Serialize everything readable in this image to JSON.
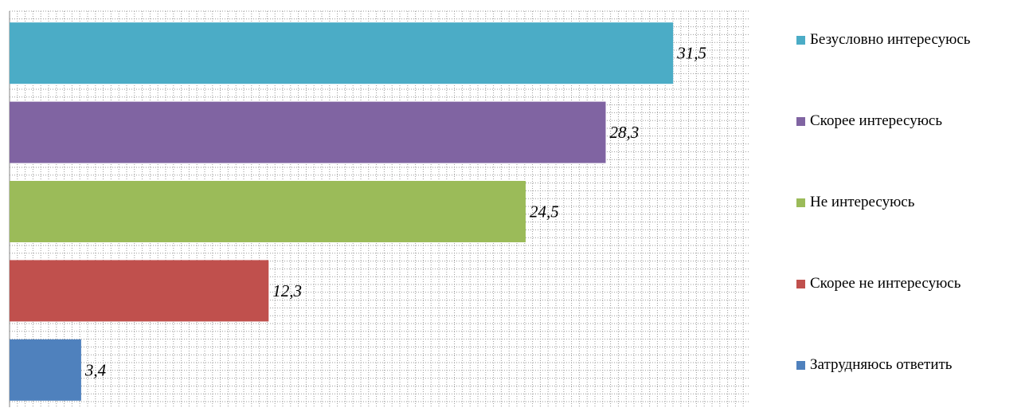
{
  "chart_data": {
    "type": "bar",
    "orientation": "horizontal",
    "categories": [
      "Безусловно интересуюсь",
      "Скорее интересуюсь",
      "Не интересуюсь",
      "Скорее не интересуюсь",
      "Затрудняюсь ответить"
    ],
    "values": [
      31.5,
      28.3,
      24.5,
      12.3,
      3.4
    ],
    "value_labels": [
      "31,5",
      "28,3",
      "24,5",
      "12,3",
      "3,4"
    ],
    "colors": [
      "#4BACC6",
      "#8064A2",
      "#9BBB59",
      "#C0504D",
      "#4F81BD"
    ],
    "title": "",
    "xlabel": "",
    "ylabel": "",
    "xlim": [
      0,
      35
    ],
    "grid": true,
    "grid_style": "dotted",
    "legend": {
      "placement": "right",
      "entries": [
        {
          "label": "Безусловно интересуюсь",
          "color": "#4BACC6"
        },
        {
          "label": "Скорее интересуюсь",
          "color": "#8064A2"
        },
        {
          "label": "Не интересуюсь",
          "color": "#9BBB59"
        },
        {
          "label": "Скорее не интересуюсь",
          "color": "#C0504D"
        },
        {
          "label": "Затрудняюсь ответить",
          "color": "#4F81BD"
        }
      ]
    }
  }
}
